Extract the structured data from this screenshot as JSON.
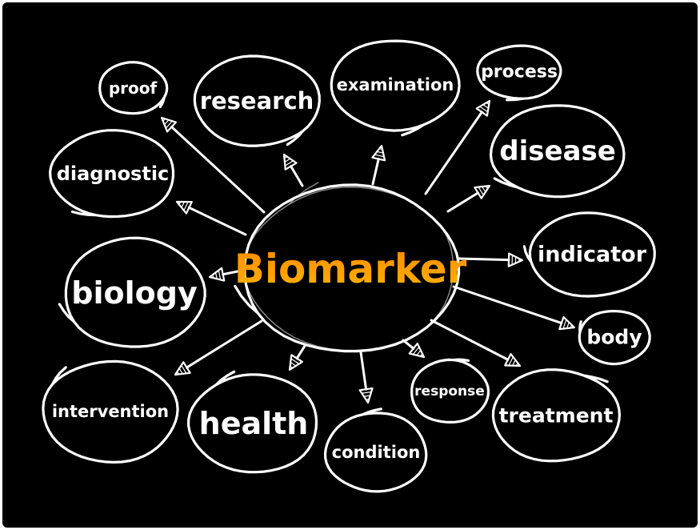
{
  "diagram": {
    "type": "mind-map",
    "center": {
      "label": "Biomarker",
      "color_top": "#ff8a00",
      "color_bottom": "#ffb300"
    },
    "colors": {
      "background": "#000000",
      "stroke": "#ffffff",
      "text": "#ffffff"
    },
    "nodes": [
      {
        "id": "proof",
        "label": "proof"
      },
      {
        "id": "research",
        "label": "research"
      },
      {
        "id": "examination",
        "label": "examination"
      },
      {
        "id": "process",
        "label": "process"
      },
      {
        "id": "diagnostic",
        "label": "diagnostic"
      },
      {
        "id": "disease",
        "label": "disease"
      },
      {
        "id": "biology",
        "label": "biology"
      },
      {
        "id": "indicator",
        "label": "indicator"
      },
      {
        "id": "body",
        "label": "body"
      },
      {
        "id": "intervention",
        "label": "intervention"
      },
      {
        "id": "health",
        "label": "health"
      },
      {
        "id": "condition",
        "label": "condition"
      },
      {
        "id": "response",
        "label": "response"
      },
      {
        "id": "treatment",
        "label": "treatment"
      }
    ]
  }
}
